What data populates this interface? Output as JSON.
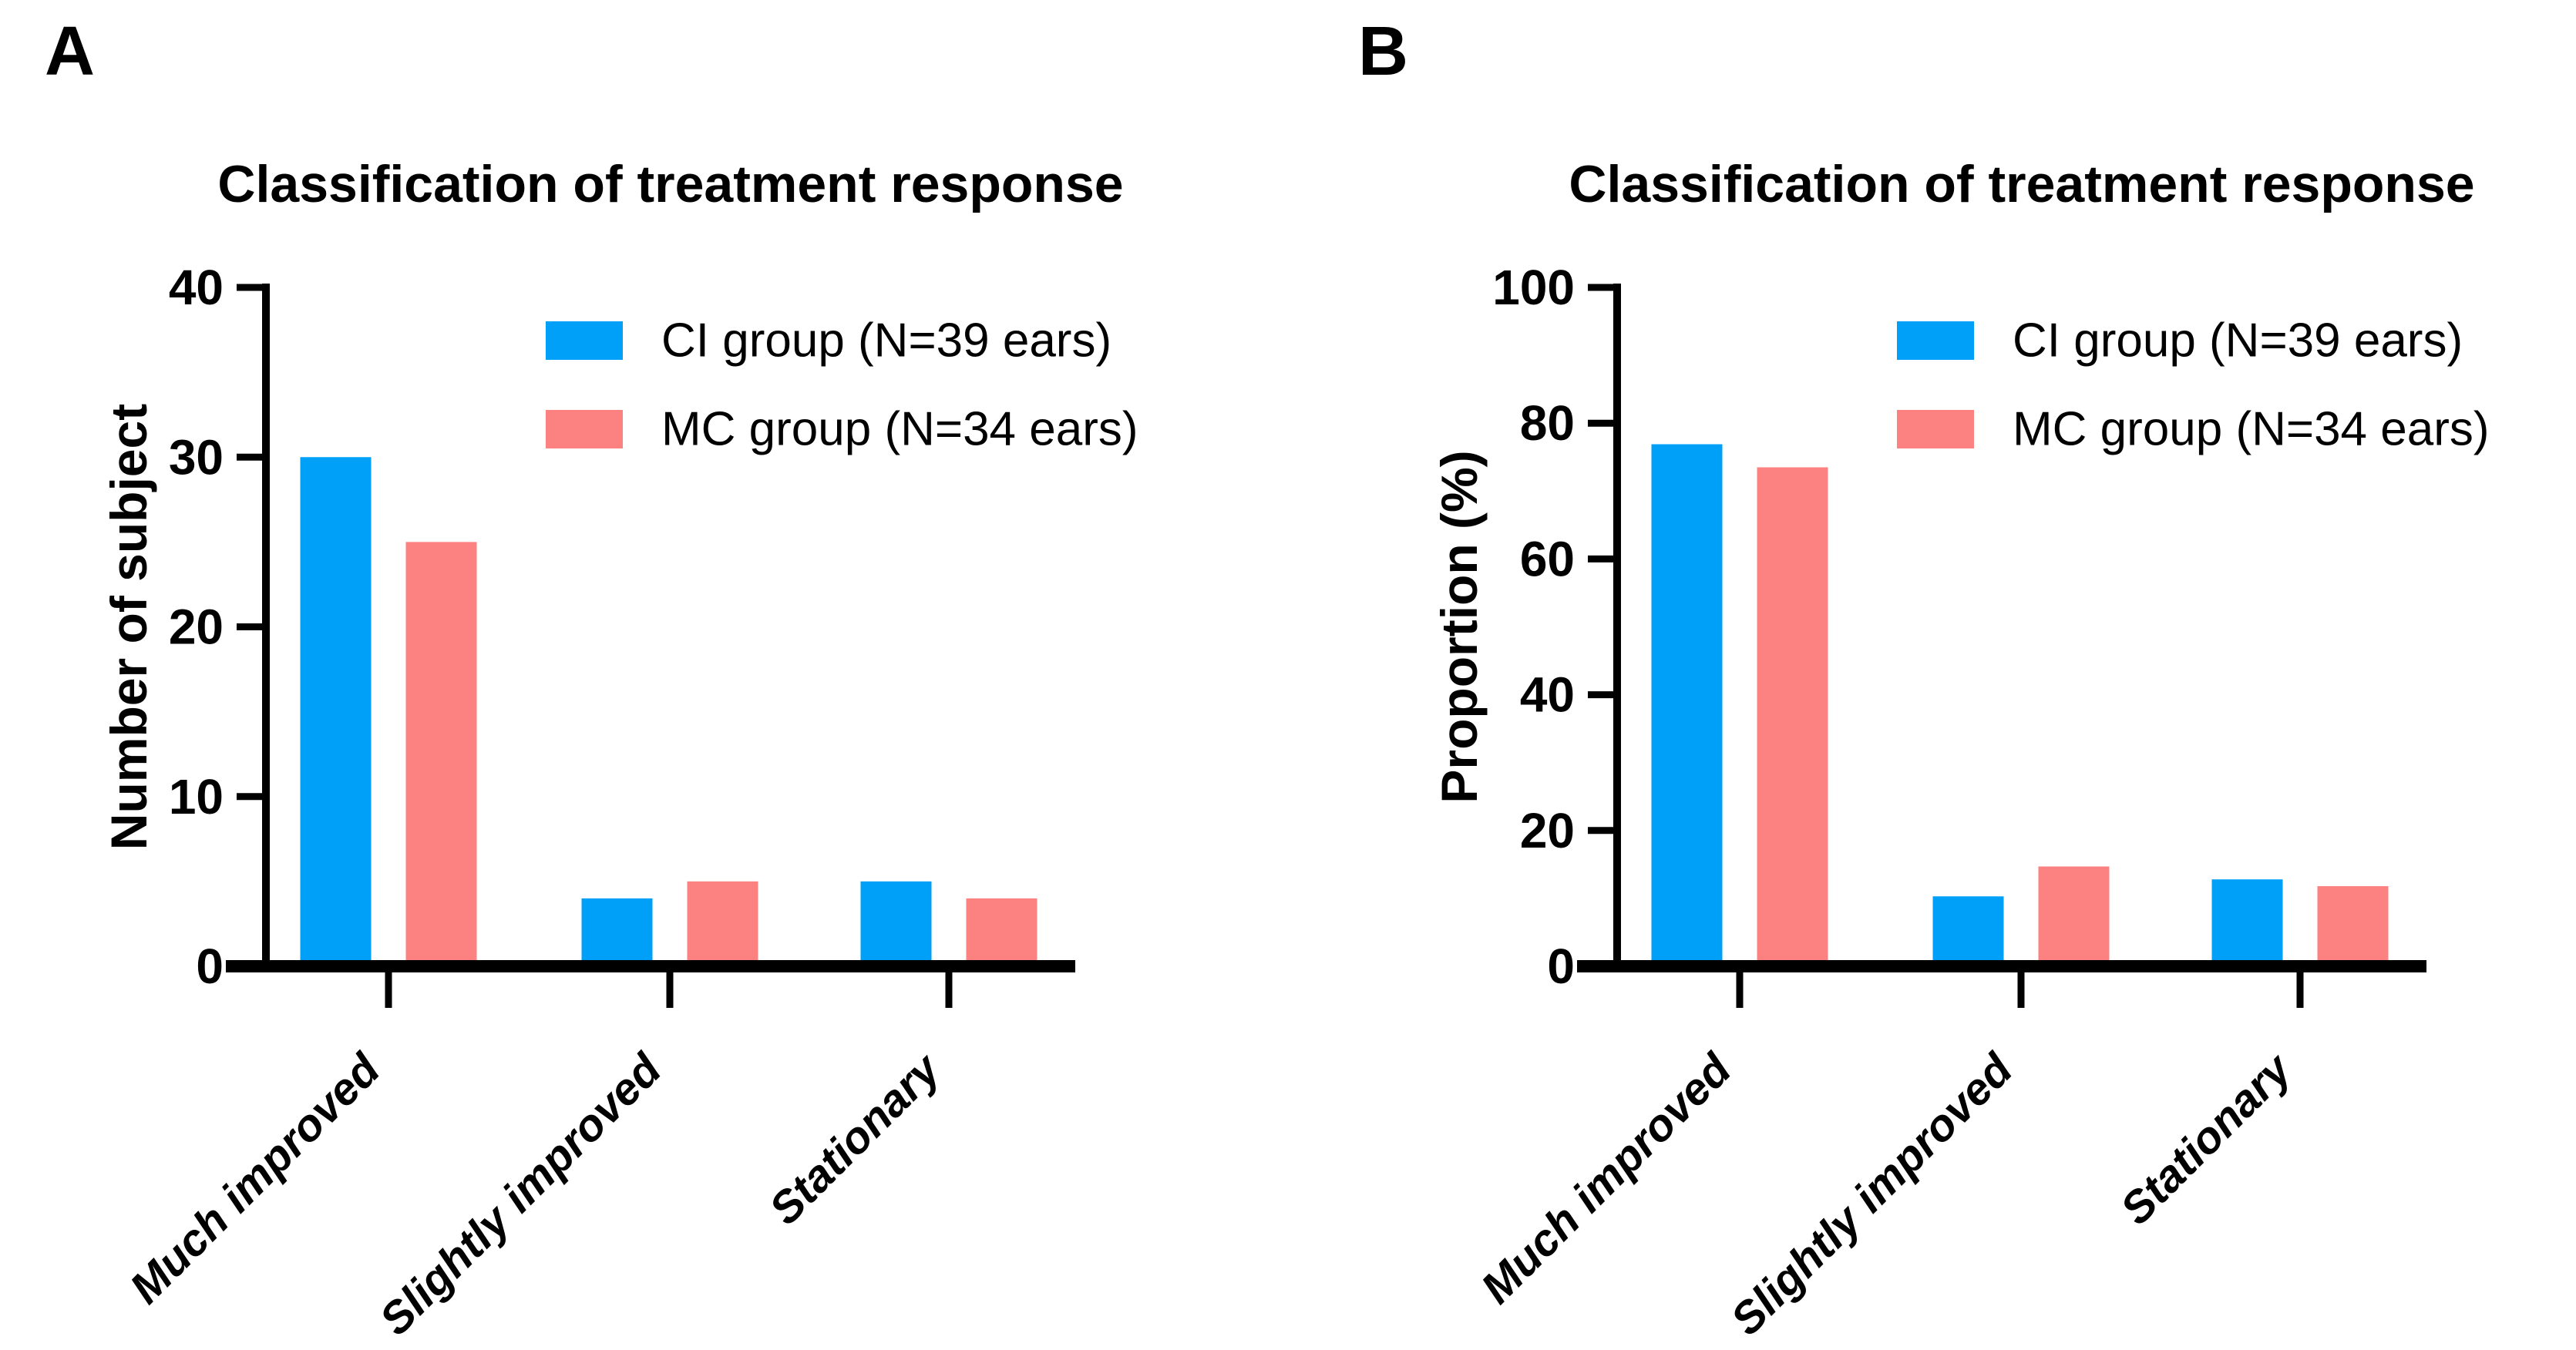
{
  "figure": {
    "background": "#ffffff",
    "axis_color": "#000000",
    "text_color": "#000000",
    "panels": [
      "A",
      "B"
    ]
  },
  "chart_data": [
    {
      "panel": "A",
      "type": "bar",
      "title": "Classification of treatment response",
      "xlabel": "",
      "ylabel": "Number of subject",
      "categories": [
        "Much improved",
        "Slightly improved",
        "Stationary"
      ],
      "series": [
        {
          "name": "CI group (N=39 ears)",
          "color": "#00A0F9",
          "values": [
            30,
            4,
            5
          ]
        },
        {
          "name": "MC group (N=34 ears)",
          "color": "#FC8181",
          "values": [
            25,
            5,
            4
          ]
        }
      ],
      "ylim": [
        0,
        40
      ],
      "yticks": [
        0,
        10,
        20,
        30,
        40
      ],
      "grid": false,
      "legend_position": "top-right-inside"
    },
    {
      "panel": "B",
      "type": "bar",
      "title": "Classification of treatment response",
      "xlabel": "",
      "ylabel": "Proportion (%)",
      "categories": [
        "Much improved",
        "Slightly improved",
        "Stationary"
      ],
      "series": [
        {
          "name": "CI group (N=39 ears)",
          "color": "#00A0F9",
          "values": [
            76.9,
            10.3,
            12.8
          ]
        },
        {
          "name": "MC group (N=34 ears)",
          "color": "#FC8181",
          "values": [
            73.5,
            14.7,
            11.8
          ]
        }
      ],
      "ylim": [
        0,
        100
      ],
      "yticks": [
        0,
        20,
        40,
        60,
        80,
        100
      ],
      "grid": false,
      "legend_position": "top-right-inside"
    }
  ]
}
